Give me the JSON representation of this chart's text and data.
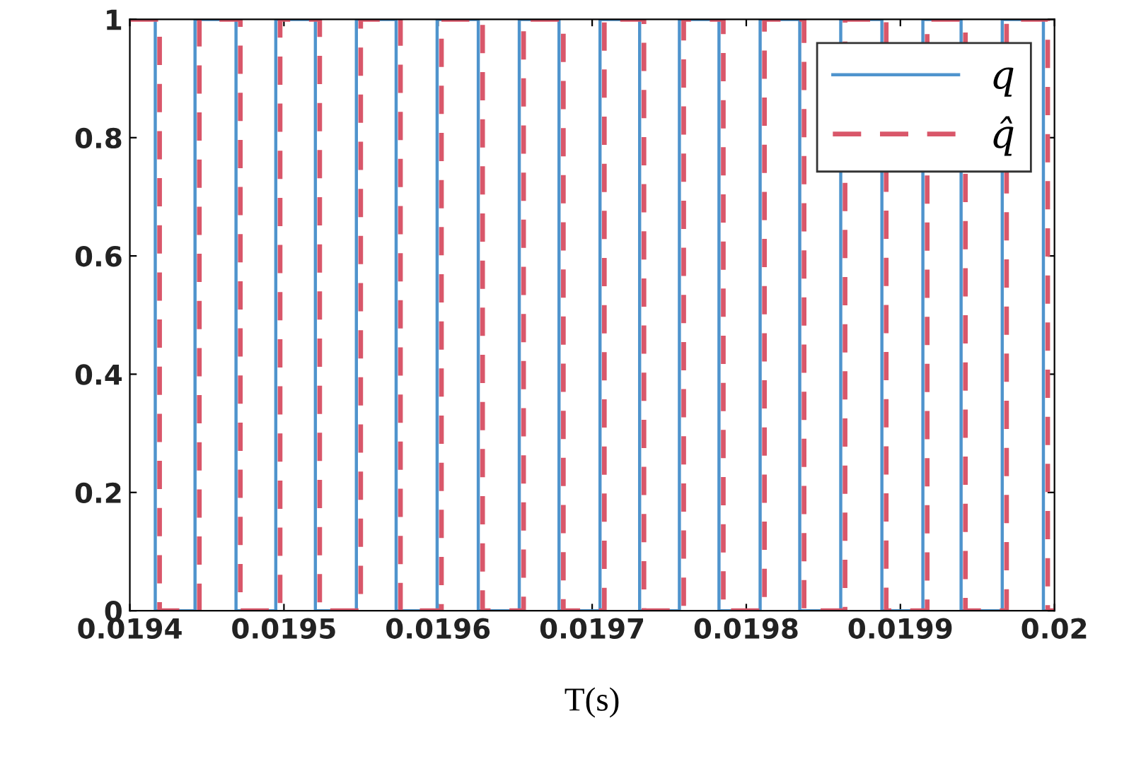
{
  "chart_data": {
    "type": "step",
    "xlabel": "T(s)",
    "series": [
      {
        "name": "q",
        "color": "#4f94cd",
        "line_style": "solid",
        "x": [
          0.0194,
          0.0194165,
          0.0194423,
          0.0194689,
          0.0194947,
          0.0195204,
          0.019547,
          0.0195728,
          0.0195994,
          0.0196261,
          0.0196527,
          0.0196785,
          0.0197051,
          0.0197308,
          0.0197566,
          0.0197823,
          0.019809,
          0.0198347,
          0.0198613,
          0.019888,
          0.0199146,
          0.0199394,
          0.0199661,
          0.0199928,
          0.02
        ],
        "values": [
          1,
          0,
          1,
          0,
          1,
          0,
          1,
          0,
          1,
          0,
          1,
          0,
          1,
          0,
          1,
          0,
          1,
          0,
          1,
          0,
          1,
          0,
          1,
          0,
          0
        ]
      },
      {
        "name": "q̂",
        "color": "#d9576a",
        "line_style": "dashed",
        "x": [
          0.0194,
          0.0194193,
          0.0194451,
          0.0194717,
          0.0194975,
          0.0195232,
          0.0195498,
          0.0195756,
          0.0196022,
          0.0196289,
          0.0196555,
          0.0196813,
          0.0197079,
          0.0197336,
          0.0197594,
          0.0197851,
          0.0198118,
          0.0198375,
          0.0198641,
          0.0198908,
          0.0199174,
          0.0199422,
          0.0199689,
          0.0199956,
          0.02
        ],
        "values": [
          1,
          0,
          1,
          0,
          1,
          0,
          1,
          0,
          1,
          0,
          1,
          0,
          1,
          0,
          1,
          0,
          1,
          0,
          1,
          0,
          1,
          0,
          1,
          0,
          0
        ]
      }
    ],
    "xlim": [
      0.0194,
      0.02
    ],
    "ylim": [
      0,
      1
    ],
    "xticks": [
      0.0194,
      0.0195,
      0.0196,
      0.0197,
      0.0198,
      0.0199,
      0.02
    ],
    "yticks": [
      0,
      0.2,
      0.4,
      0.6,
      0.8,
      1
    ],
    "grid": false,
    "legend": "top right"
  }
}
